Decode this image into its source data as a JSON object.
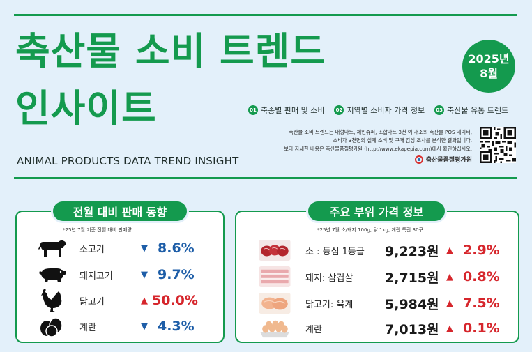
{
  "header": {
    "title_line1": "축산물 소비 트렌드",
    "title_line2": "인사이트",
    "subtitle_en": "ANIMAL PRODUCTS DATA TREND INSIGHT",
    "date_year": "2025년",
    "date_month": "8월",
    "topics": [
      {
        "num": "01",
        "label": "축종별 판매 및 소비"
      },
      {
        "num": "02",
        "label": "지역별 소비자 가격 정보"
      },
      {
        "num": "03",
        "label": "축산물 유통 트렌드"
      }
    ],
    "description": [
      "축산물 소비 트렌드는 대형마트, 체인슈퍼, 조합마트 3천 여 개소의 축산물 POS 데이터,",
      "소비자 3천명의 실제 소비 및 구매 감성 조사를 분석한 결과입니다.",
      "보다 자세한 내용은 축산물품질평가원 (http://www.ekapepia.com)에서 확인하십시오."
    ],
    "org_name": "축산물품질평가원",
    "brand_color": "#149a4e"
  },
  "sales_panel": {
    "title": "전월 대비 판매 동향",
    "note": "*25년 7월 기준 전월 대비 판매량",
    "items": [
      {
        "icon": "cow-icon",
        "label": "소고기",
        "direction": "down",
        "arrow": "▼",
        "change": "8.6%"
      },
      {
        "icon": "pig-icon",
        "label": "돼지고기",
        "direction": "down",
        "arrow": "▼",
        "change": "9.7%"
      },
      {
        "icon": "chicken-icon",
        "label": "닭고기",
        "direction": "up",
        "arrow": "▲",
        "change": "50.0%"
      },
      {
        "icon": "egg-icon",
        "label": "계란",
        "direction": "down",
        "arrow": "▼",
        "change": "4.3%"
      }
    ]
  },
  "price_panel": {
    "title": "주요 부위 가격 정보",
    "note": "*25년 7월 소/돼지 100g, 닭 1kg, 계란 특란 30구",
    "items": [
      {
        "icon": "beef-sirloin-icon",
        "label": "소 : 등심 1등급",
        "price": "9,223원",
        "arrow": "▲",
        "change": "2.9%"
      },
      {
        "icon": "pork-belly-icon",
        "label": "돼지: 삼겹살",
        "price": "2,715원",
        "arrow": "▲",
        "change": "0.8%"
      },
      {
        "icon": "chicken-meat-icon",
        "label": "닭고기: 육계",
        "price": "5,984원",
        "arrow": "▲",
        "change": "7.5%"
      },
      {
        "icon": "eggs-tray-icon",
        "label": "계란",
        "price": "7,013원",
        "arrow": "▲",
        "change": "0.1%"
      }
    ]
  },
  "colors": {
    "up": "#d6262c",
    "down": "#1e5ea8",
    "background": "#e3f0fa"
  }
}
